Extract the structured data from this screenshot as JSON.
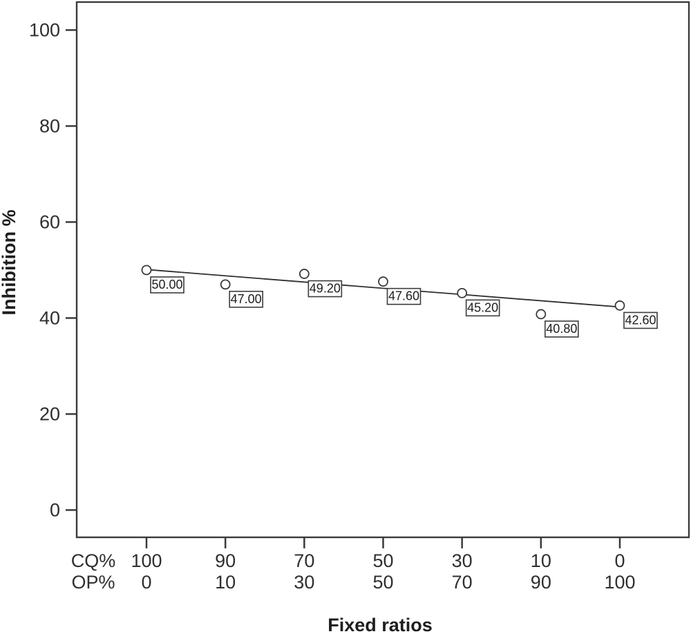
{
  "chart_data": {
    "type": "scatter",
    "title": "",
    "xlabel": "Fixed ratios",
    "ylabel": "Inhibition %",
    "x_axis": {
      "row_headers": [
        "CQ%",
        "OP%"
      ],
      "rows": [
        [
          "100",
          "90",
          "70",
          "50",
          "30",
          "10",
          "0"
        ],
        [
          "0",
          "10",
          "30",
          "50",
          "70",
          "90",
          "100"
        ]
      ]
    },
    "yticks": [
      0,
      20,
      40,
      60,
      80,
      100
    ],
    "ylim": [
      0,
      105
    ],
    "values": [
      50.0,
      47.0,
      49.2,
      47.6,
      45.2,
      40.8,
      42.6
    ],
    "labels": [
      "50.00",
      "47.00",
      "49.20",
      "47.60",
      "45.20",
      "40.80",
      "42.60"
    ],
    "trendline": {
      "start_value": 50.1,
      "end_value": 42.3
    },
    "grid": false,
    "legend": false,
    "marker": "open-circle"
  },
  "colors": {
    "ink": "#2f2f2f",
    "axis": "#3a3a3a",
    "background": "#ffffff",
    "label_box_fill": "#fcfcfc"
  }
}
